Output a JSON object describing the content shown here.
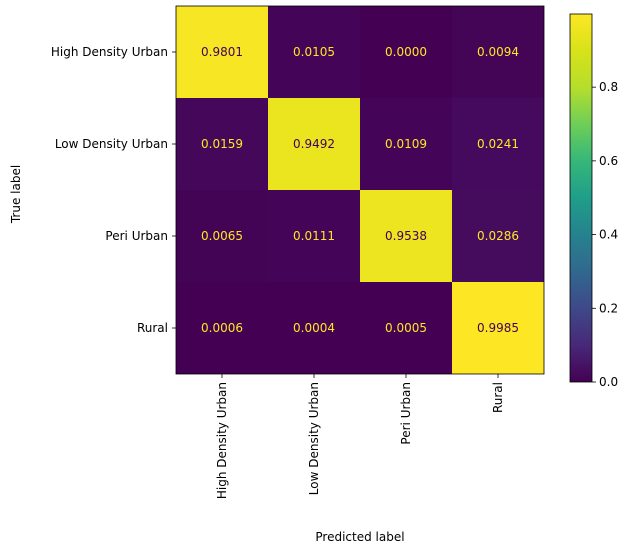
{
  "chart_data": {
    "type": "heatmap",
    "title": "",
    "xlabel": "Predicted label",
    "ylabel": "True label",
    "x_categories": [
      "High Density Urban",
      "Low Density Urban",
      "Peri Urban",
      "Rural"
    ],
    "y_categories": [
      "High Density Urban",
      "Low Density Urban",
      "Peri Urban",
      "Rural"
    ],
    "values": [
      [
        0.9801,
        0.0105,
        0.0,
        0.0094
      ],
      [
        0.0159,
        0.9492,
        0.0109,
        0.0241
      ],
      [
        0.0065,
        0.0111,
        0.9538,
        0.0286
      ],
      [
        0.0006,
        0.0004,
        0.0005,
        0.9985
      ]
    ],
    "value_labels": [
      [
        "0.9801",
        "0.0105",
        "0.0000",
        "0.0094"
      ],
      [
        "0.0159",
        "0.9492",
        "0.0109",
        "0.0241"
      ],
      [
        "0.0065",
        "0.0111",
        "0.9538",
        "0.0286"
      ],
      [
        "0.0006",
        "0.0004",
        "0.0005",
        "0.9985"
      ]
    ],
    "colormap": "viridis",
    "colorbar": {
      "range": [
        0,
        0.9985
      ],
      "ticks": [
        0.0,
        0.2,
        0.4,
        0.6,
        0.8
      ],
      "tick_labels": [
        "0.0",
        "0.2",
        "0.4",
        "0.6",
        "0.8"
      ]
    },
    "text_colors": {
      "on_dark": "#fde725",
      "on_light": "#440154"
    },
    "grid": false
  }
}
